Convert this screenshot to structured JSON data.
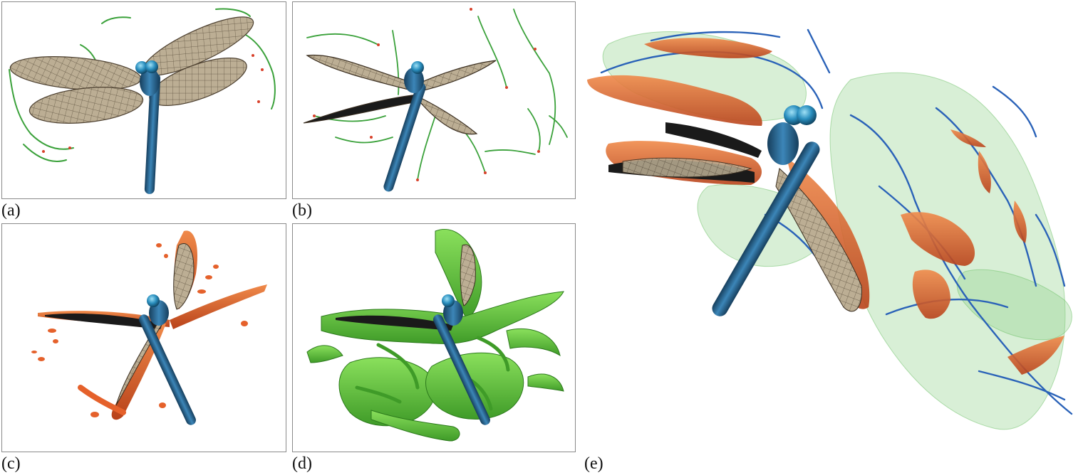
{
  "figure": {
    "panels": [
      {
        "label": "(a)",
        "content": "dragonfly-vortex-lines-top-view"
      },
      {
        "label": "(b)",
        "content": "dragonfly-vortex-lines-oblique-view"
      },
      {
        "label": "(c)",
        "content": "dragonfly-orange-isosurface"
      },
      {
        "label": "(d)",
        "content": "dragonfly-green-isosurface"
      },
      {
        "label": "(e)",
        "content": "dragonfly-combined-vortex-visualization"
      }
    ]
  },
  "colors": {
    "wing": "#b8ab92",
    "wing_vein": "#5a4e3c",
    "body": "#2d6f9c",
    "body_dark": "#163e5c",
    "vortex_line_green": "#3aa13a",
    "vortex_line_red": "#d8402a",
    "isosurface_orange": "#e5612b",
    "isosurface_green": "#5cc83a",
    "vortex_line_blue": "#2a62b8",
    "translucent_green": "#8fd08a"
  }
}
